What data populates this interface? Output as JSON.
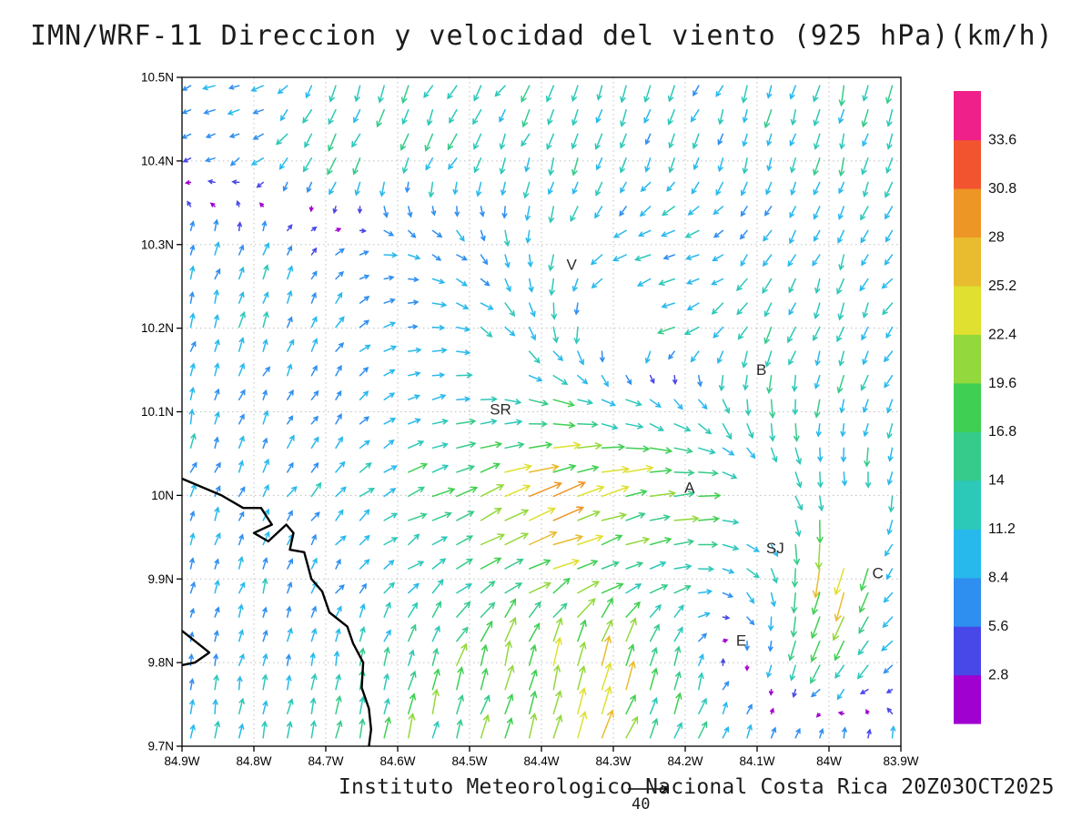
{
  "title": "IMN/WRF-11 Direccion y velocidad del viento (925 hPa)(km/h)",
  "footer": {
    "credit": "Instituto Meteorologico Nacional Costa Rica  20Z03OCT2025",
    "reference_value": "40"
  },
  "chart_data": {
    "type": "quiver",
    "title": "IMN/WRF-11 Direccion y velocidad del viento (925 hPa)(km/h)",
    "xlabel": "",
    "ylabel": "",
    "units": "km/h",
    "level": "925 hPa",
    "x_tick_labels": [
      "84.9W",
      "84.8W",
      "84.7W",
      "84.6W",
      "84.5W",
      "84.4W",
      "84.3W",
      "84.2W",
      "84.1W",
      "84W",
      "83.9W"
    ],
    "x_tick_values": [
      84.9,
      84.8,
      84.7,
      84.6,
      84.5,
      84.4,
      84.3,
      84.2,
      84.1,
      84.0,
      83.9
    ],
    "y_tick_labels": [
      "10.5N",
      "10.4N",
      "10.3N",
      "10.2N",
      "10.1N",
      "10N",
      "9.9N",
      "9.8N",
      "9.7N"
    ],
    "y_tick_values": [
      10.5,
      10.4,
      10.3,
      10.2,
      10.1,
      10.0,
      9.9,
      9.8,
      9.7
    ],
    "lon_range": [
      84.9,
      83.9
    ],
    "lat_range": [
      9.7,
      10.5
    ],
    "grid": true,
    "legend_position": "right-colorbar",
    "colorbar": {
      "levels": [
        2.8,
        5.6,
        8.4,
        11.2,
        14,
        16.8,
        19.6,
        22.4,
        25.2,
        28,
        30.8,
        33.6
      ],
      "level_labels": [
        "2.8",
        "5.6",
        "8.4",
        "11.2",
        "14",
        "16.8",
        "19.6",
        "22.4",
        "25.2",
        "28",
        "30.8",
        "33.6"
      ],
      "colors": [
        "#a000d0",
        "#4848e8",
        "#2f8ff0",
        "#28b9ec",
        "#2cc8b8",
        "#36cb8a",
        "#3fcf52",
        "#93d83c",
        "#dfe030",
        "#e8bc2e",
        "#ed9626",
        "#f25430",
        "#f0208a"
      ]
    },
    "stations": [
      {
        "label": "V",
        "lon": 84.358,
        "lat": 10.27
      },
      {
        "label": "B",
        "lon": 84.094,
        "lat": 10.144
      },
      {
        "label": "SR",
        "lon": 84.457,
        "lat": 10.097
      },
      {
        "label": "A",
        "lon": 84.194,
        "lat": 10.003
      },
      {
        "label": "SJ",
        "lon": 84.075,
        "lat": 9.931
      },
      {
        "label": "C",
        "lon": 83.932,
        "lat": 9.901
      },
      {
        "label": "E",
        "lon": 84.122,
        "lat": 9.82
      }
    ],
    "coastline": [
      [
        [
          84.9,
          10.02
        ],
        [
          84.845,
          10.0
        ],
        [
          84.815,
          9.985
        ],
        [
          84.79,
          9.985
        ],
        [
          84.775,
          9.965
        ],
        [
          84.8,
          9.955
        ],
        [
          84.78,
          9.945
        ],
        [
          84.755,
          9.965
        ],
        [
          84.745,
          9.955
        ],
        [
          84.75,
          9.935
        ],
        [
          84.73,
          9.932
        ],
        [
          84.72,
          9.9
        ],
        [
          84.705,
          9.885
        ],
        [
          84.695,
          9.86
        ],
        [
          84.67,
          9.843
        ],
        [
          84.662,
          9.823
        ],
        [
          84.648,
          9.8
        ],
        [
          84.65,
          9.77
        ],
        [
          84.64,
          9.745
        ],
        [
          84.637,
          9.72
        ],
        [
          84.64,
          9.7
        ]
      ],
      [
        [
          84.9,
          9.838
        ],
        [
          84.862,
          9.812
        ],
        [
          84.882,
          9.8
        ],
        [
          84.9,
          9.797
        ]
      ]
    ],
    "wind_grid": {
      "lons": [
        84.9,
        84.8,
        84.7,
        84.6,
        84.5,
        84.4,
        84.3,
        84.2,
        84.1,
        84.0,
        83.9
      ],
      "lats": [
        10.5,
        10.4,
        10.3,
        10.2,
        10.1,
        10.0,
        9.9,
        9.8,
        9.7
      ],
      "u": [
        [
          -8,
          -9,
          -4,
          -5,
          -6,
          -5,
          -4,
          -5,
          -3,
          -4,
          -3
        ],
        [
          -5,
          -7,
          -6,
          -5,
          -5,
          -4,
          -4,
          -4,
          -3,
          -3,
          -4
        ],
        [
          2,
          3,
          4,
          8,
          6,
          -2,
          -8,
          -10,
          -6,
          -4,
          -6
        ],
        [
          2,
          3,
          4,
          8,
          10,
          4,
          -6,
          -12,
          -6,
          -4,
          -6
        ],
        [
          2,
          3,
          4,
          10,
          14,
          16,
          14,
          10,
          2,
          -2,
          -4
        ],
        [
          3,
          4,
          6,
          12,
          18,
          24,
          22,
          18,
          10,
          2,
          -2
        ],
        [
          2,
          3,
          4,
          8,
          14,
          20,
          16,
          12,
          6,
          -6,
          -6
        ],
        [
          1,
          2,
          2,
          4,
          6,
          4,
          6,
          4,
          -2,
          -8,
          -7
        ],
        [
          2,
          2,
          3,
          4,
          5,
          6,
          8,
          6,
          4,
          2,
          2
        ]
      ],
      "v": [
        [
          -3,
          -2,
          -11,
          -12,
          -10,
          -12,
          -12,
          -10,
          -12,
          -14,
          -12
        ],
        [
          -2,
          -4,
          -13,
          -12,
          -10,
          -12,
          -10,
          -10,
          -10,
          -12,
          -10
        ],
        [
          7,
          8,
          5,
          -2,
          -6,
          -12,
          -6,
          -2,
          -6,
          -10,
          -8
        ],
        [
          9,
          10,
          8,
          2,
          -4,
          -12,
          -10,
          -4,
          -12,
          -12,
          -10
        ],
        [
          10,
          8,
          6,
          4,
          2,
          -2,
          -4,
          -8,
          -14,
          -12,
          -10
        ],
        [
          8,
          8,
          8,
          6,
          8,
          10,
          6,
          2,
          -6,
          -16,
          -10
        ],
        [
          6,
          8,
          8,
          6,
          8,
          8,
          6,
          2,
          -8,
          -26,
          -6
        ],
        [
          8,
          10,
          10,
          14,
          18,
          20,
          22,
          12,
          -6,
          -16,
          -4
        ],
        [
          10,
          12,
          14,
          16,
          18,
          20,
          20,
          14,
          10,
          8,
          10
        ]
      ]
    },
    "arrow_density": {
      "nx": 30,
      "ny": 28
    },
    "gaps": [
      [
        84.28,
        10.22,
        0.05
      ],
      [
        84.35,
        10.31,
        0.035
      ],
      [
        84.1,
        9.99,
        0.05
      ],
      [
        84.46,
        10.16,
        0.035
      ],
      [
        83.96,
        9.97,
        0.04
      ],
      [
        84.62,
        10.43,
        0.03
      ]
    ]
  }
}
